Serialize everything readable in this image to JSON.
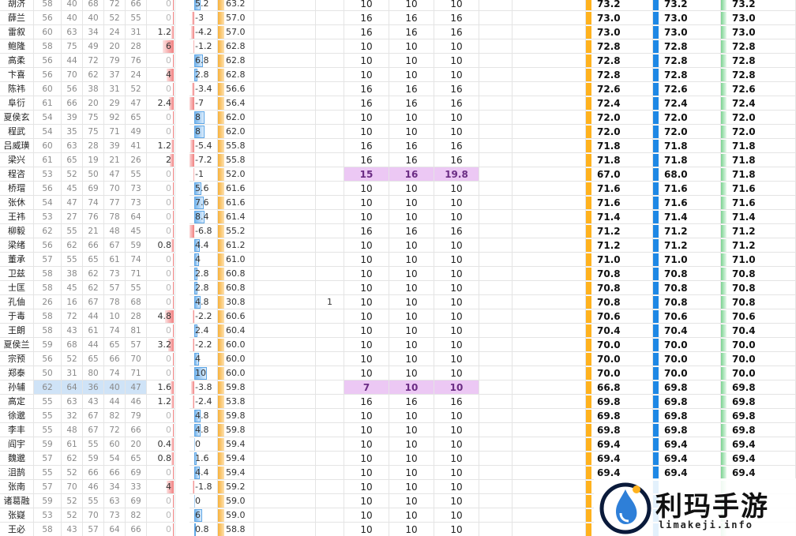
{
  "colors": {
    "red_bar": "#f08080",
    "blue_bar": "#76b6ee",
    "orange_bar": "#f8b13a",
    "final_orange": "#ffb21e",
    "final_blue": "#1e88e5",
    "final_green": "#79d28f",
    "highlight": "#ecc8f4",
    "selection": "#cfe3f7"
  },
  "logo": {
    "title": "利玛手游",
    "subtitle": "limakeji.info",
    "icon": "ink-drop-icon"
  },
  "rows": [
    {
      "name": "胡济",
      "s": [
        "58",
        "40",
        "68",
        "72",
        "66"
      ],
      "e": "0",
      "d": "5.2",
      "t": "63.2",
      "f": "",
      "v": [
        "10",
        "10",
        "10"
      ],
      "r": [
        "73.2",
        "73.2",
        "73.2"
      ]
    },
    {
      "name": "薛兰",
      "s": [
        "56",
        "40",
        "40",
        "52",
        "55"
      ],
      "e": "0",
      "d": "-3",
      "t": "57.0",
      "f": "",
      "v": [
        "16",
        "16",
        "16"
      ],
      "r": [
        "73.0",
        "73.0",
        "73.0"
      ]
    },
    {
      "name": "雷叙",
      "s": [
        "60",
        "63",
        "34",
        "24",
        "31"
      ],
      "e": "1.2",
      "d": "-4.2",
      "t": "57.0",
      "f": "",
      "v": [
        "16",
        "16",
        "16"
      ],
      "r": [
        "73.0",
        "73.0",
        "73.0"
      ]
    },
    {
      "name": "鲍隆",
      "s": [
        "58",
        "75",
        "49",
        "20",
        "28"
      ],
      "e": "6",
      "d": "-1.2",
      "t": "62.8",
      "f": "",
      "v": [
        "10",
        "10",
        "10"
      ],
      "r": [
        "72.8",
        "72.8",
        "72.8"
      ]
    },
    {
      "name": "高柔",
      "s": [
        "56",
        "44",
        "72",
        "79",
        "76"
      ],
      "e": "0",
      "d": "6.8",
      "t": "62.8",
      "f": "",
      "v": [
        "10",
        "10",
        "10"
      ],
      "r": [
        "72.8",
        "72.8",
        "72.8"
      ]
    },
    {
      "name": "卞喜",
      "s": [
        "56",
        "70",
        "62",
        "37",
        "24"
      ],
      "e": "4",
      "d": "2.8",
      "t": "62.8",
      "f": "",
      "v": [
        "10",
        "10",
        "10"
      ],
      "r": [
        "72.8",
        "72.8",
        "72.8"
      ]
    },
    {
      "name": "陈祎",
      "s": [
        "60",
        "56",
        "38",
        "31",
        "52"
      ],
      "e": "0",
      "d": "-3.4",
      "t": "56.6",
      "f": "",
      "v": [
        "16",
        "16",
        "16"
      ],
      "r": [
        "72.6",
        "72.6",
        "72.6"
      ]
    },
    {
      "name": "阜衍",
      "s": [
        "61",
        "66",
        "20",
        "29",
        "47"
      ],
      "e": "2.4",
      "d": "-7",
      "t": "56.4",
      "f": "",
      "v": [
        "16",
        "16",
        "16"
      ],
      "r": [
        "72.4",
        "72.4",
        "72.4"
      ]
    },
    {
      "name": "夏侯玄",
      "s": [
        "54",
        "39",
        "75",
        "92",
        "65"
      ],
      "e": "0",
      "d": "8",
      "t": "62.0",
      "f": "",
      "v": [
        "10",
        "10",
        "10"
      ],
      "r": [
        "72.0",
        "72.0",
        "72.0"
      ]
    },
    {
      "name": "程武",
      "s": [
        "54",
        "35",
        "75",
        "71",
        "49"
      ],
      "e": "0",
      "d": "8",
      "t": "62.0",
      "f": "",
      "v": [
        "10",
        "10",
        "10"
      ],
      "r": [
        "72.0",
        "72.0",
        "72.0"
      ]
    },
    {
      "name": "吕威璜",
      "s": [
        "60",
        "63",
        "28",
        "39",
        "41"
      ],
      "e": "1.2",
      "d": "-5.4",
      "t": "55.8",
      "f": "",
      "v": [
        "16",
        "16",
        "16"
      ],
      "r": [
        "71.8",
        "71.8",
        "71.8"
      ]
    },
    {
      "name": "梁兴",
      "s": [
        "61",
        "65",
        "19",
        "21",
        "26"
      ],
      "e": "2",
      "d": "-7.2",
      "t": "55.8",
      "f": "",
      "v": [
        "16",
        "16",
        "16"
      ],
      "r": [
        "71.8",
        "71.8",
        "71.8"
      ]
    },
    {
      "name": "程咨",
      "s": [
        "53",
        "52",
        "50",
        "47",
        "55"
      ],
      "e": "0",
      "d": "-1",
      "t": "52.0",
      "f": "",
      "v": [
        "15",
        "16",
        "19.8"
      ],
      "r": [
        "67.0",
        "68.0",
        "71.8"
      ],
      "hl": true
    },
    {
      "name": "桥瑁",
      "s": [
        "56",
        "45",
        "69",
        "70",
        "73"
      ],
      "e": "0",
      "d": "5.6",
      "t": "61.6",
      "f": "",
      "v": [
        "10",
        "10",
        "10"
      ],
      "r": [
        "71.6",
        "71.6",
        "71.6"
      ]
    },
    {
      "name": "张休",
      "s": [
        "54",
        "47",
        "74",
        "77",
        "73"
      ],
      "e": "0",
      "d": "7.6",
      "t": "61.6",
      "f": "",
      "v": [
        "10",
        "10",
        "10"
      ],
      "r": [
        "71.6",
        "71.6",
        "71.6"
      ]
    },
    {
      "name": "王祎",
      "s": [
        "53",
        "27",
        "76",
        "78",
        "64"
      ],
      "e": "0",
      "d": "8.4",
      "t": "61.4",
      "f": "",
      "v": [
        "10",
        "10",
        "10"
      ],
      "r": [
        "71.4",
        "71.4",
        "71.4"
      ]
    },
    {
      "name": "柳毅",
      "s": [
        "62",
        "55",
        "21",
        "48",
        "45"
      ],
      "e": "0",
      "d": "-6.8",
      "t": "55.2",
      "f": "",
      "v": [
        "16",
        "16",
        "16"
      ],
      "r": [
        "71.2",
        "71.2",
        "71.2"
      ]
    },
    {
      "name": "梁绪",
      "s": [
        "56",
        "62",
        "66",
        "67",
        "59"
      ],
      "e": "0.8",
      "d": "4.4",
      "t": "61.2",
      "f": "",
      "v": [
        "10",
        "10",
        "10"
      ],
      "r": [
        "71.2",
        "71.2",
        "71.2"
      ]
    },
    {
      "name": "董承",
      "s": [
        "57",
        "55",
        "65",
        "61",
        "74"
      ],
      "e": "0",
      "d": "4",
      "t": "61.0",
      "f": "",
      "v": [
        "10",
        "10",
        "10"
      ],
      "r": [
        "71.0",
        "71.0",
        "71.0"
      ]
    },
    {
      "name": "卫兹",
      "s": [
        "58",
        "38",
        "62",
        "73",
        "71"
      ],
      "e": "0",
      "d": "2.8",
      "t": "60.8",
      "f": "",
      "v": [
        "10",
        "10",
        "10"
      ],
      "r": [
        "70.8",
        "70.8",
        "70.8"
      ]
    },
    {
      "name": "士匡",
      "s": [
        "58",
        "45",
        "62",
        "57",
        "55"
      ],
      "e": "0",
      "d": "2.8",
      "t": "60.8",
      "f": "",
      "v": [
        "10",
        "10",
        "10"
      ],
      "r": [
        "70.8",
        "70.8",
        "70.8"
      ]
    },
    {
      "name": "孔伷",
      "s": [
        "26",
        "16",
        "67",
        "78",
        "68"
      ],
      "e": "0",
      "d": "4.8",
      "t": "30.8",
      "f": "1",
      "v": [
        "10",
        "10",
        "10"
      ],
      "r": [
        "70.8",
        "70.8",
        "70.8"
      ]
    },
    {
      "name": "于毒",
      "s": [
        "58",
        "72",
        "44",
        "10",
        "28"
      ],
      "e": "4.8",
      "d": "-2.2",
      "t": "60.6",
      "f": "",
      "v": [
        "10",
        "10",
        "10"
      ],
      "r": [
        "70.6",
        "70.6",
        "70.6"
      ]
    },
    {
      "name": "王朗",
      "s": [
        "58",
        "43",
        "61",
        "74",
        "81"
      ],
      "e": "0",
      "d": "2.4",
      "t": "60.4",
      "f": "",
      "v": [
        "10",
        "10",
        "10"
      ],
      "r": [
        "70.4",
        "70.4",
        "70.4"
      ]
    },
    {
      "name": "夏侯兰",
      "s": [
        "59",
        "68",
        "44",
        "65",
        "57"
      ],
      "e": "3.2",
      "d": "-2.2",
      "t": "60.0",
      "f": "",
      "v": [
        "10",
        "10",
        "10"
      ],
      "r": [
        "70.0",
        "70.0",
        "70.0"
      ]
    },
    {
      "name": "宗预",
      "s": [
        "56",
        "52",
        "65",
        "66",
        "70"
      ],
      "e": "0",
      "d": "4",
      "t": "60.0",
      "f": "",
      "v": [
        "10",
        "10",
        "10"
      ],
      "r": [
        "70.0",
        "70.0",
        "70.0"
      ]
    },
    {
      "name": "郑泰",
      "s": [
        "50",
        "31",
        "80",
        "74",
        "71"
      ],
      "e": "0",
      "d": "10",
      "t": "60.0",
      "f": "",
      "v": [
        "10",
        "10",
        "10"
      ],
      "r": [
        "70.0",
        "70.0",
        "70.0"
      ]
    },
    {
      "name": "孙辅",
      "s": [
        "62",
        "64",
        "36",
        "40",
        "47"
      ],
      "e": "1.6",
      "d": "-3.8",
      "t": "59.8",
      "f": "",
      "v": [
        "7",
        "10",
        "10"
      ],
      "r": [
        "66.8",
        "69.8",
        "69.8"
      ],
      "hl": true,
      "sel": true
    },
    {
      "name": "高定",
      "s": [
        "55",
        "63",
        "43",
        "44",
        "46"
      ],
      "e": "1.2",
      "d": "-2.4",
      "t": "53.8",
      "f": "",
      "v": [
        "16",
        "16",
        "16"
      ],
      "r": [
        "69.8",
        "69.8",
        "69.8"
      ]
    },
    {
      "name": "徐邈",
      "s": [
        "55",
        "32",
        "67",
        "82",
        "79"
      ],
      "e": "0",
      "d": "4.8",
      "t": "59.8",
      "f": "",
      "v": [
        "10",
        "10",
        "10"
      ],
      "r": [
        "69.8",
        "69.8",
        "69.8"
      ]
    },
    {
      "name": "李丰",
      "s": [
        "55",
        "48",
        "67",
        "72",
        "66"
      ],
      "e": "0",
      "d": "4.8",
      "t": "59.8",
      "f": "",
      "v": [
        "10",
        "10",
        "10"
      ],
      "r": [
        "69.8",
        "69.8",
        "69.8"
      ]
    },
    {
      "name": "阎宇",
      "s": [
        "59",
        "61",
        "55",
        "60",
        "20"
      ],
      "e": "0.4",
      "d": "0",
      "t": "59.4",
      "f": "",
      "v": [
        "10",
        "10",
        "10"
      ],
      "r": [
        "69.4",
        "69.4",
        "69.4"
      ]
    },
    {
      "name": "魏邈",
      "s": [
        "57",
        "62",
        "59",
        "54",
        "65"
      ],
      "e": "0.8",
      "d": "1.6",
      "t": "59.4",
      "f": "",
      "v": [
        "10",
        "10",
        "10"
      ],
      "r": [
        "69.4",
        "69.4",
        "69.4"
      ]
    },
    {
      "name": "沮鹄",
      "s": [
        "55",
        "52",
        "66",
        "66",
        "69"
      ],
      "e": "0",
      "d": "4.4",
      "t": "59.4",
      "f": "",
      "v": [
        "10",
        "10",
        "10"
      ],
      "r": [
        "69.4",
        "69.4",
        "69.4"
      ]
    },
    {
      "name": "张南",
      "s": [
        "57",
        "70",
        "46",
        "34",
        "33"
      ],
      "e": "4",
      "d": "-1.8",
      "t": "59.2",
      "f": "",
      "v": [
        "10",
        "10",
        "10"
      ],
      "r": [
        "",
        "",
        ""
      ]
    },
    {
      "name": "诸葛融",
      "s": [
        "59",
        "52",
        "55",
        "63",
        "69"
      ],
      "e": "0",
      "d": "0",
      "t": "59.0",
      "f": "",
      "v": [
        "10",
        "10",
        "10"
      ],
      "r": [
        "",
        "",
        ""
      ]
    },
    {
      "name": "张嶷",
      "s": [
        "53",
        "52",
        "70",
        "73",
        "82"
      ],
      "e": "0",
      "d": "6",
      "t": "59.0",
      "f": "",
      "v": [
        "10",
        "10",
        "10"
      ],
      "r": [
        "",
        "",
        ""
      ]
    },
    {
      "name": "王必",
      "s": [
        "58",
        "43",
        "57",
        "64",
        "66"
      ],
      "e": "0",
      "d": "0.8",
      "t": "58.8",
      "f": "",
      "v": [
        "10",
        "10",
        "10"
      ],
      "r": [
        "",
        "",
        ""
      ]
    }
  ]
}
